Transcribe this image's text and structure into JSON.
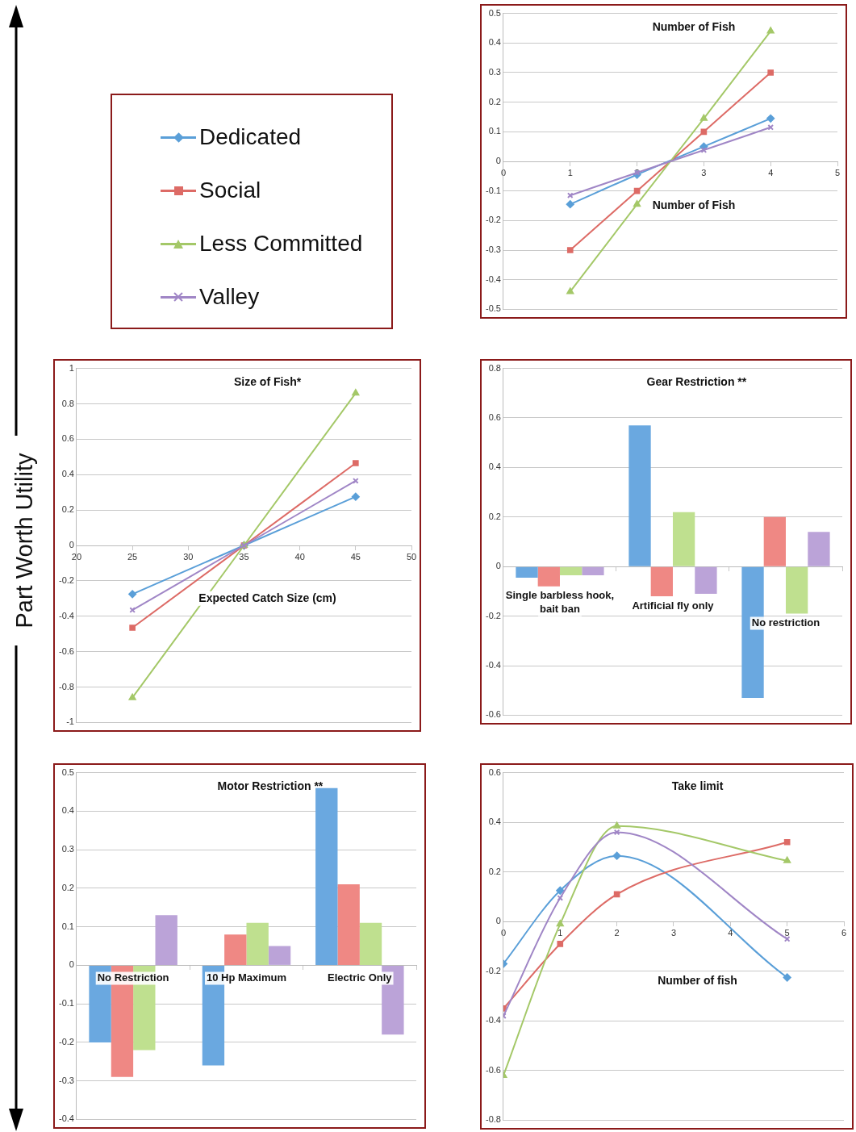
{
  "chart_data": [
    {
      "type": "line",
      "title": "Number of Fish",
      "xlabel": "Number of Fish",
      "x": [
        1,
        2,
        3,
        4
      ],
      "xlim": [
        0,
        5
      ],
      "xticks": [
        0,
        1,
        2,
        3,
        4,
        5
      ],
      "ylim": [
        -0.5,
        0.5
      ],
      "yticks": [
        -0.5,
        -0.4,
        -0.3,
        -0.2,
        -0.1,
        0,
        0.1,
        0.2,
        0.3,
        0.4,
        0.5
      ],
      "grid": "y",
      "legend": "left",
      "series": [
        {
          "name": "Dedicated",
          "color": "#5a9fd8",
          "marker": "diamond",
          "values": [
            -0.145,
            -0.045,
            0.05,
            0.145
          ]
        },
        {
          "name": "Social",
          "color": "#dd6b66",
          "marker": "square",
          "values": [
            -0.3,
            -0.1,
            0.1,
            0.3
          ]
        },
        {
          "name": "Less Committed",
          "color": "#a4c868",
          "marker": "triangle",
          "values": [
            -0.44,
            -0.145,
            0.145,
            0.44
          ]
        },
        {
          "name": "Valley",
          "color": "#a086c6",
          "marker": "cross",
          "values": [
            -0.115,
            -0.038,
            0.038,
            0.115
          ]
        }
      ]
    },
    {
      "type": "line",
      "title": "Size of Fish*",
      "xlabel": "Expected Catch Size (cm)",
      "ylabel": "Part Worth Utility",
      "x": [
        25,
        35,
        45
      ],
      "xlim": [
        20,
        50
      ],
      "xticks": [
        20,
        25,
        30,
        35,
        40,
        45,
        50
      ],
      "ylim": [
        -1,
        1
      ],
      "yticks": [
        -1,
        -0.8,
        -0.6,
        -0.4,
        -0.2,
        0,
        0.2,
        0.4,
        0.6,
        0.8,
        1
      ],
      "grid": "y",
      "series": [
        {
          "color": "#5a9fd8",
          "marker": "diamond",
          "values": [
            -0.275,
            0,
            0.275
          ]
        },
        {
          "color": "#dd6b66",
          "marker": "square",
          "values": [
            -0.465,
            0,
            0.465
          ]
        },
        {
          "color": "#a4c868",
          "marker": "triangle",
          "values": [
            -0.86,
            0,
            0.86
          ]
        },
        {
          "color": "#a086c6",
          "marker": "cross",
          "values": [
            -0.365,
            0,
            0.365
          ]
        }
      ]
    },
    {
      "type": "bar",
      "title": "Gear Restriction **",
      "categories": [
        "Single barbless hook, bait ban",
        "Artificial fly only",
        "No restriction"
      ],
      "ylim": [
        -0.6,
        0.8
      ],
      "yticks": [
        -0.6,
        -0.4,
        -0.2,
        0,
        0.2,
        0.4,
        0.6,
        0.8
      ],
      "grid": "y",
      "series": [
        {
          "color": "#6aa8e0",
          "values": [
            -0.045,
            0.57,
            -0.53
          ]
        },
        {
          "color": "#ef8884",
          "values": [
            -0.08,
            -0.12,
            0.2
          ]
        },
        {
          "color": "#bfe08f",
          "values": [
            -0.035,
            0.22,
            -0.19
          ]
        },
        {
          "color": "#bba3d8",
          "values": [
            -0.035,
            -0.11,
            0.14
          ]
        }
      ]
    },
    {
      "type": "bar",
      "title": "Motor Restriction **",
      "categories": [
        "No Restriction",
        "10 Hp Maximum",
        "Electric Only"
      ],
      "ylim": [
        -0.4,
        0.5
      ],
      "yticks": [
        -0.4,
        -0.3,
        -0.2,
        -0.1,
        0,
        0.1,
        0.2,
        0.3,
        0.4,
        0.5
      ],
      "grid": "y",
      "series": [
        {
          "color": "#6aa8e0",
          "values": [
            -0.2,
            -0.26,
            0.46
          ]
        },
        {
          "color": "#ef8884",
          "values": [
            -0.29,
            0.08,
            0.21
          ]
        },
        {
          "color": "#bfe08f",
          "values": [
            -0.22,
            0.11,
            0.11
          ]
        },
        {
          "color": "#bba3d8",
          "values": [
            0.13,
            0.05,
            -0.18
          ]
        }
      ]
    },
    {
      "type": "line",
      "title": "Take limit",
      "xlabel": "Number of fish",
      "x": [
        0,
        1,
        2,
        5
      ],
      "xlim": [
        0,
        6
      ],
      "xticks": [
        0,
        1,
        2,
        3,
        4,
        5,
        6
      ],
      "ylim": [
        -0.8,
        0.6
      ],
      "yticks": [
        -0.8,
        -0.6,
        -0.4,
        -0.2,
        0,
        0.2,
        0.4,
        0.6
      ],
      "grid": "y",
      "series": [
        {
          "color": "#5a9fd8",
          "marker": "diamond",
          "values": [
            -0.17,
            0.125,
            0.265,
            -0.225
          ]
        },
        {
          "color": "#dd6b66",
          "marker": "square",
          "values": [
            -0.35,
            -0.09,
            0.11,
            0.32
          ]
        },
        {
          "color": "#a4c868",
          "marker": "triangle",
          "values": [
            -0.62,
            -0.01,
            0.385,
            0.245
          ]
        },
        {
          "color": "#a086c6",
          "marker": "cross",
          "values": [
            -0.38,
            0.095,
            0.36,
            -0.07
          ]
        }
      ]
    }
  ]
}
